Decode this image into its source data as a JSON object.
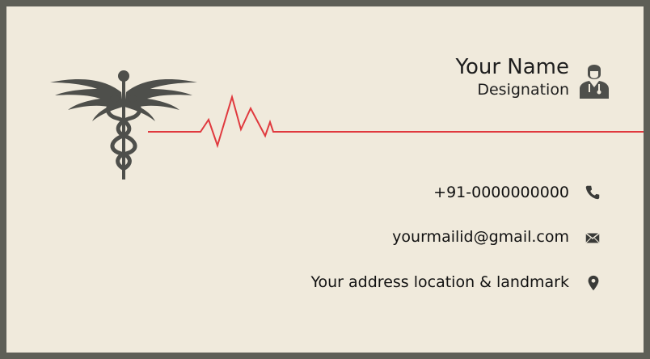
{
  "card": {
    "name": "Your Name",
    "designation": "Designation",
    "contacts": {
      "phone": "+91-0000000000",
      "email": "yourmailid@gmail.com",
      "address": "Your address location &  landmark"
    }
  },
  "icons": {
    "emblem": "caduceus-icon",
    "person": "doctor-icon",
    "phone": "phone-icon",
    "email": "envelope-icon",
    "address": "map-pin-icon"
  },
  "colors": {
    "border": "#5e5f57",
    "background": "#f0eadc",
    "pulse_line": "#e0393e",
    "icon": "#4e4f4b",
    "text": "#1e1e1e"
  }
}
